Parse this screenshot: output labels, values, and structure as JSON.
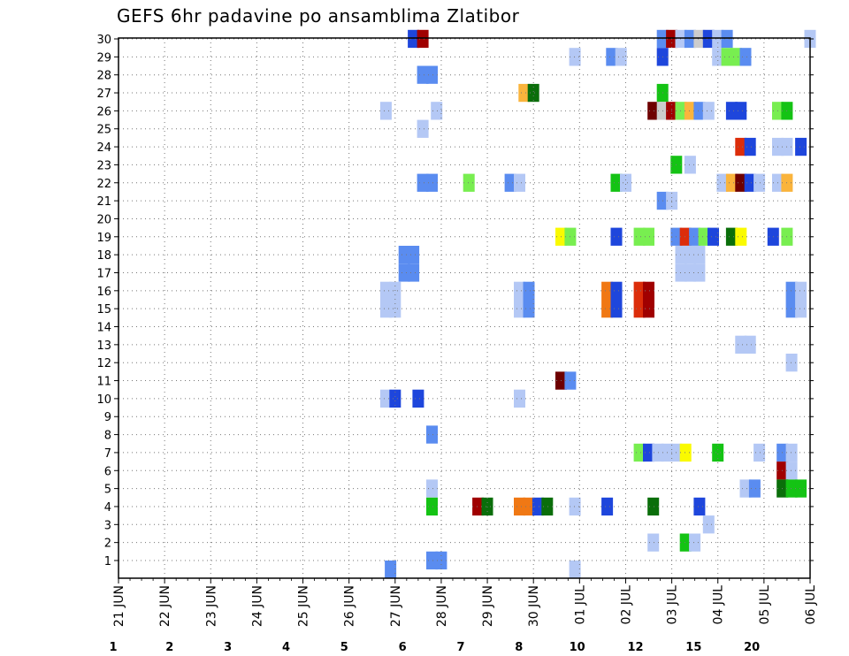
{
  "chart_data": {
    "type": "heatmap",
    "title": "GEFS 6hr padavine po ansamblima Zlatibor",
    "y_categories": [
      "1",
      "2",
      "3",
      "4",
      "5",
      "6",
      "7",
      "8",
      "9",
      "10",
      "11",
      "12",
      "13",
      "14",
      "15",
      "16",
      "17",
      "18",
      "19",
      "20",
      "21",
      "22",
      "23",
      "24",
      "25",
      "26",
      "27",
      "28",
      "29",
      "30"
    ],
    "x_tick_labels": [
      "21 JUN",
      "22 JUN",
      "23 JUN",
      "24 JUN",
      "25 JUN",
      "26 JUN",
      "27 JUN",
      "28 JUN",
      "29 JUN",
      "30 JUN",
      "01 JUL",
      "02 JUL",
      "03 JUL",
      "04 JUL",
      "05 JUL",
      "06 JUL"
    ],
    "x_range_days": [
      0,
      15
    ],
    "grid": true,
    "legend": {
      "position": "bottom",
      "levels": [
        1,
        2,
        3,
        4,
        5,
        6,
        7,
        8,
        10,
        12,
        15,
        20
      ],
      "tick_labels": [
        "1",
        "2",
        "3",
        "4",
        "5",
        "6",
        "7",
        "8",
        "10",
        "12",
        "15",
        "20"
      ],
      "colors": [
        "#b4c8f5",
        "#5a8cf0",
        "#1e46dc",
        "#78ee50",
        "#14c314",
        "#0a6e0a",
        "#fafa00",
        "#fab43c",
        "#f07814",
        "#dc2d0a",
        "#a00000",
        "#6e0000"
      ]
    },
    "cells": [
      [
        30,
        6.4,
        3
      ],
      [
        30,
        6.6,
        11
      ],
      [
        30,
        11.8,
        2
      ],
      [
        30,
        12.0,
        11
      ],
      [
        30,
        12.2,
        1
      ],
      [
        30,
        12.4,
        2
      ],
      [
        30,
        12.6,
        13
      ],
      [
        30,
        12.8,
        3
      ],
      [
        30,
        13.0,
        1
      ],
      [
        30,
        13.2,
        2
      ],
      [
        30,
        15.0,
        1
      ],
      [
        29,
        9.9,
        1
      ],
      [
        29,
        10.7,
        2
      ],
      [
        29,
        10.9,
        1
      ],
      [
        29,
        11.8,
        3
      ],
      [
        29,
        13.0,
        1
      ],
      [
        29,
        13.2,
        4
      ],
      [
        29,
        13.4,
        4
      ],
      [
        29,
        13.6,
        2
      ],
      [
        28,
        6.6,
        2
      ],
      [
        28,
        6.8,
        2
      ],
      [
        27,
        8.8,
        8
      ],
      [
        27,
        9.0,
        6
      ],
      [
        27,
        11.8,
        5
      ],
      [
        26,
        5.8,
        1
      ],
      [
        26,
        6.9,
        1
      ],
      [
        26,
        11.6,
        12
      ],
      [
        26,
        11.8,
        13
      ],
      [
        26,
        12.0,
        11
      ],
      [
        26,
        12.2,
        4
      ],
      [
        26,
        12.4,
        8
      ],
      [
        26,
        12.6,
        2
      ],
      [
        26,
        12.8,
        1
      ],
      [
        26,
        13.3,
        3
      ],
      [
        26,
        13.5,
        3
      ],
      [
        26,
        14.3,
        4
      ],
      [
        26,
        14.5,
        5
      ],
      [
        25,
        6.6,
        1
      ],
      [
        24,
        13.5,
        10
      ],
      [
        24,
        13.7,
        3
      ],
      [
        24,
        14.3,
        1
      ],
      [
        24,
        14.5,
        1
      ],
      [
        24,
        14.8,
        3
      ],
      [
        23,
        12.1,
        5
      ],
      [
        23,
        12.4,
        1
      ],
      [
        22,
        6.6,
        2
      ],
      [
        22,
        6.8,
        2
      ],
      [
        22,
        7.6,
        4
      ],
      [
        22,
        8.5,
        2
      ],
      [
        22,
        8.7,
        1
      ],
      [
        22,
        10.8,
        5
      ],
      [
        22,
        11.0,
        1
      ],
      [
        22,
        13.1,
        1
      ],
      [
        22,
        13.3,
        8
      ],
      [
        22,
        13.5,
        12
      ],
      [
        22,
        13.7,
        3
      ],
      [
        22,
        13.9,
        1
      ],
      [
        22,
        14.3,
        1
      ],
      [
        22,
        14.5,
        8
      ],
      [
        21,
        11.8,
        2
      ],
      [
        21,
        12.0,
        1
      ],
      [
        19,
        9.6,
        7
      ],
      [
        19,
        9.8,
        4
      ],
      [
        19,
        10.8,
        3
      ],
      [
        19,
        11.3,
        4
      ],
      [
        19,
        11.5,
        4
      ],
      [
        19,
        12.1,
        2
      ],
      [
        19,
        12.3,
        10
      ],
      [
        19,
        12.5,
        2
      ],
      [
        19,
        12.7,
        4
      ],
      [
        19,
        12.9,
        3
      ],
      [
        19,
        13.3,
        6
      ],
      [
        19,
        13.5,
        7
      ],
      [
        19,
        14.2,
        3
      ],
      [
        19,
        14.5,
        4
      ],
      [
        18,
        6.2,
        2
      ],
      [
        18,
        6.4,
        2
      ],
      [
        18,
        12.2,
        1
      ],
      [
        18,
        12.4,
        1
      ],
      [
        18,
        12.6,
        1
      ],
      [
        17,
        6.2,
        2
      ],
      [
        17,
        6.4,
        2
      ],
      [
        17,
        12.2,
        1
      ],
      [
        17,
        12.4,
        1
      ],
      [
        17,
        12.6,
        1
      ],
      [
        16,
        5.8,
        1
      ],
      [
        16,
        6.0,
        1
      ],
      [
        16,
        8.7,
        1
      ],
      [
        16,
        8.9,
        2
      ],
      [
        16,
        10.6,
        9
      ],
      [
        16,
        10.8,
        3
      ],
      [
        16,
        11.3,
        10
      ],
      [
        16,
        11.5,
        11
      ],
      [
        16,
        14.6,
        2
      ],
      [
        16,
        14.8,
        1
      ],
      [
        15,
        5.8,
        1
      ],
      [
        15,
        6.0,
        1
      ],
      [
        15,
        8.7,
        1
      ],
      [
        15,
        8.9,
        2
      ],
      [
        15,
        10.6,
        9
      ],
      [
        15,
        10.8,
        3
      ],
      [
        15,
        11.3,
        10
      ],
      [
        15,
        11.5,
        11
      ],
      [
        15,
        14.6,
        2
      ],
      [
        15,
        14.8,
        1
      ],
      [
        13,
        13.5,
        1
      ],
      [
        13,
        13.7,
        1
      ],
      [
        12,
        14.6,
        1
      ],
      [
        11,
        9.6,
        12
      ],
      [
        11,
        9.8,
        2
      ],
      [
        10,
        5.8,
        1
      ],
      [
        10,
        6.0,
        3
      ],
      [
        10,
        6.5,
        3
      ],
      [
        10,
        8.7,
        1
      ],
      [
        8,
        6.8,
        2
      ],
      [
        7,
        11.3,
        4
      ],
      [
        7,
        11.5,
        3
      ],
      [
        7,
        11.7,
        1
      ],
      [
        7,
        11.9,
        1
      ],
      [
        7,
        12.1,
        1
      ],
      [
        7,
        12.3,
        7
      ],
      [
        7,
        13.0,
        5
      ],
      [
        7,
        13.9,
        1
      ],
      [
        7,
        14.4,
        2
      ],
      [
        7,
        14.6,
        1
      ],
      [
        6,
        14.4,
        11
      ],
      [
        6,
        14.6,
        1
      ],
      [
        5,
        6.8,
        1
      ],
      [
        5,
        13.6,
        1
      ],
      [
        5,
        13.8,
        2
      ],
      [
        5,
        14.4,
        6
      ],
      [
        5,
        14.6,
        5
      ],
      [
        5,
        14.8,
        5
      ],
      [
        4,
        6.8,
        5
      ],
      [
        4,
        7.8,
        11
      ],
      [
        4,
        8.0,
        6
      ],
      [
        4,
        8.7,
        9
      ],
      [
        4,
        8.9,
        9
      ],
      [
        4,
        9.1,
        3
      ],
      [
        4,
        9.3,
        6
      ],
      [
        4,
        9.9,
        1
      ],
      [
        4,
        10.6,
        3
      ],
      [
        4,
        11.6,
        6
      ],
      [
        4,
        12.6,
        3
      ],
      [
        3,
        12.8,
        1
      ],
      [
        2,
        11.6,
        1
      ],
      [
        2,
        12.3,
        5
      ],
      [
        2,
        12.5,
        1
      ],
      [
        1,
        6.8,
        2
      ],
      [
        1,
        7.0,
        2
      ],
      [
        0.5,
        5.9,
        2
      ],
      [
        0.5,
        9.9,
        1
      ]
    ]
  }
}
